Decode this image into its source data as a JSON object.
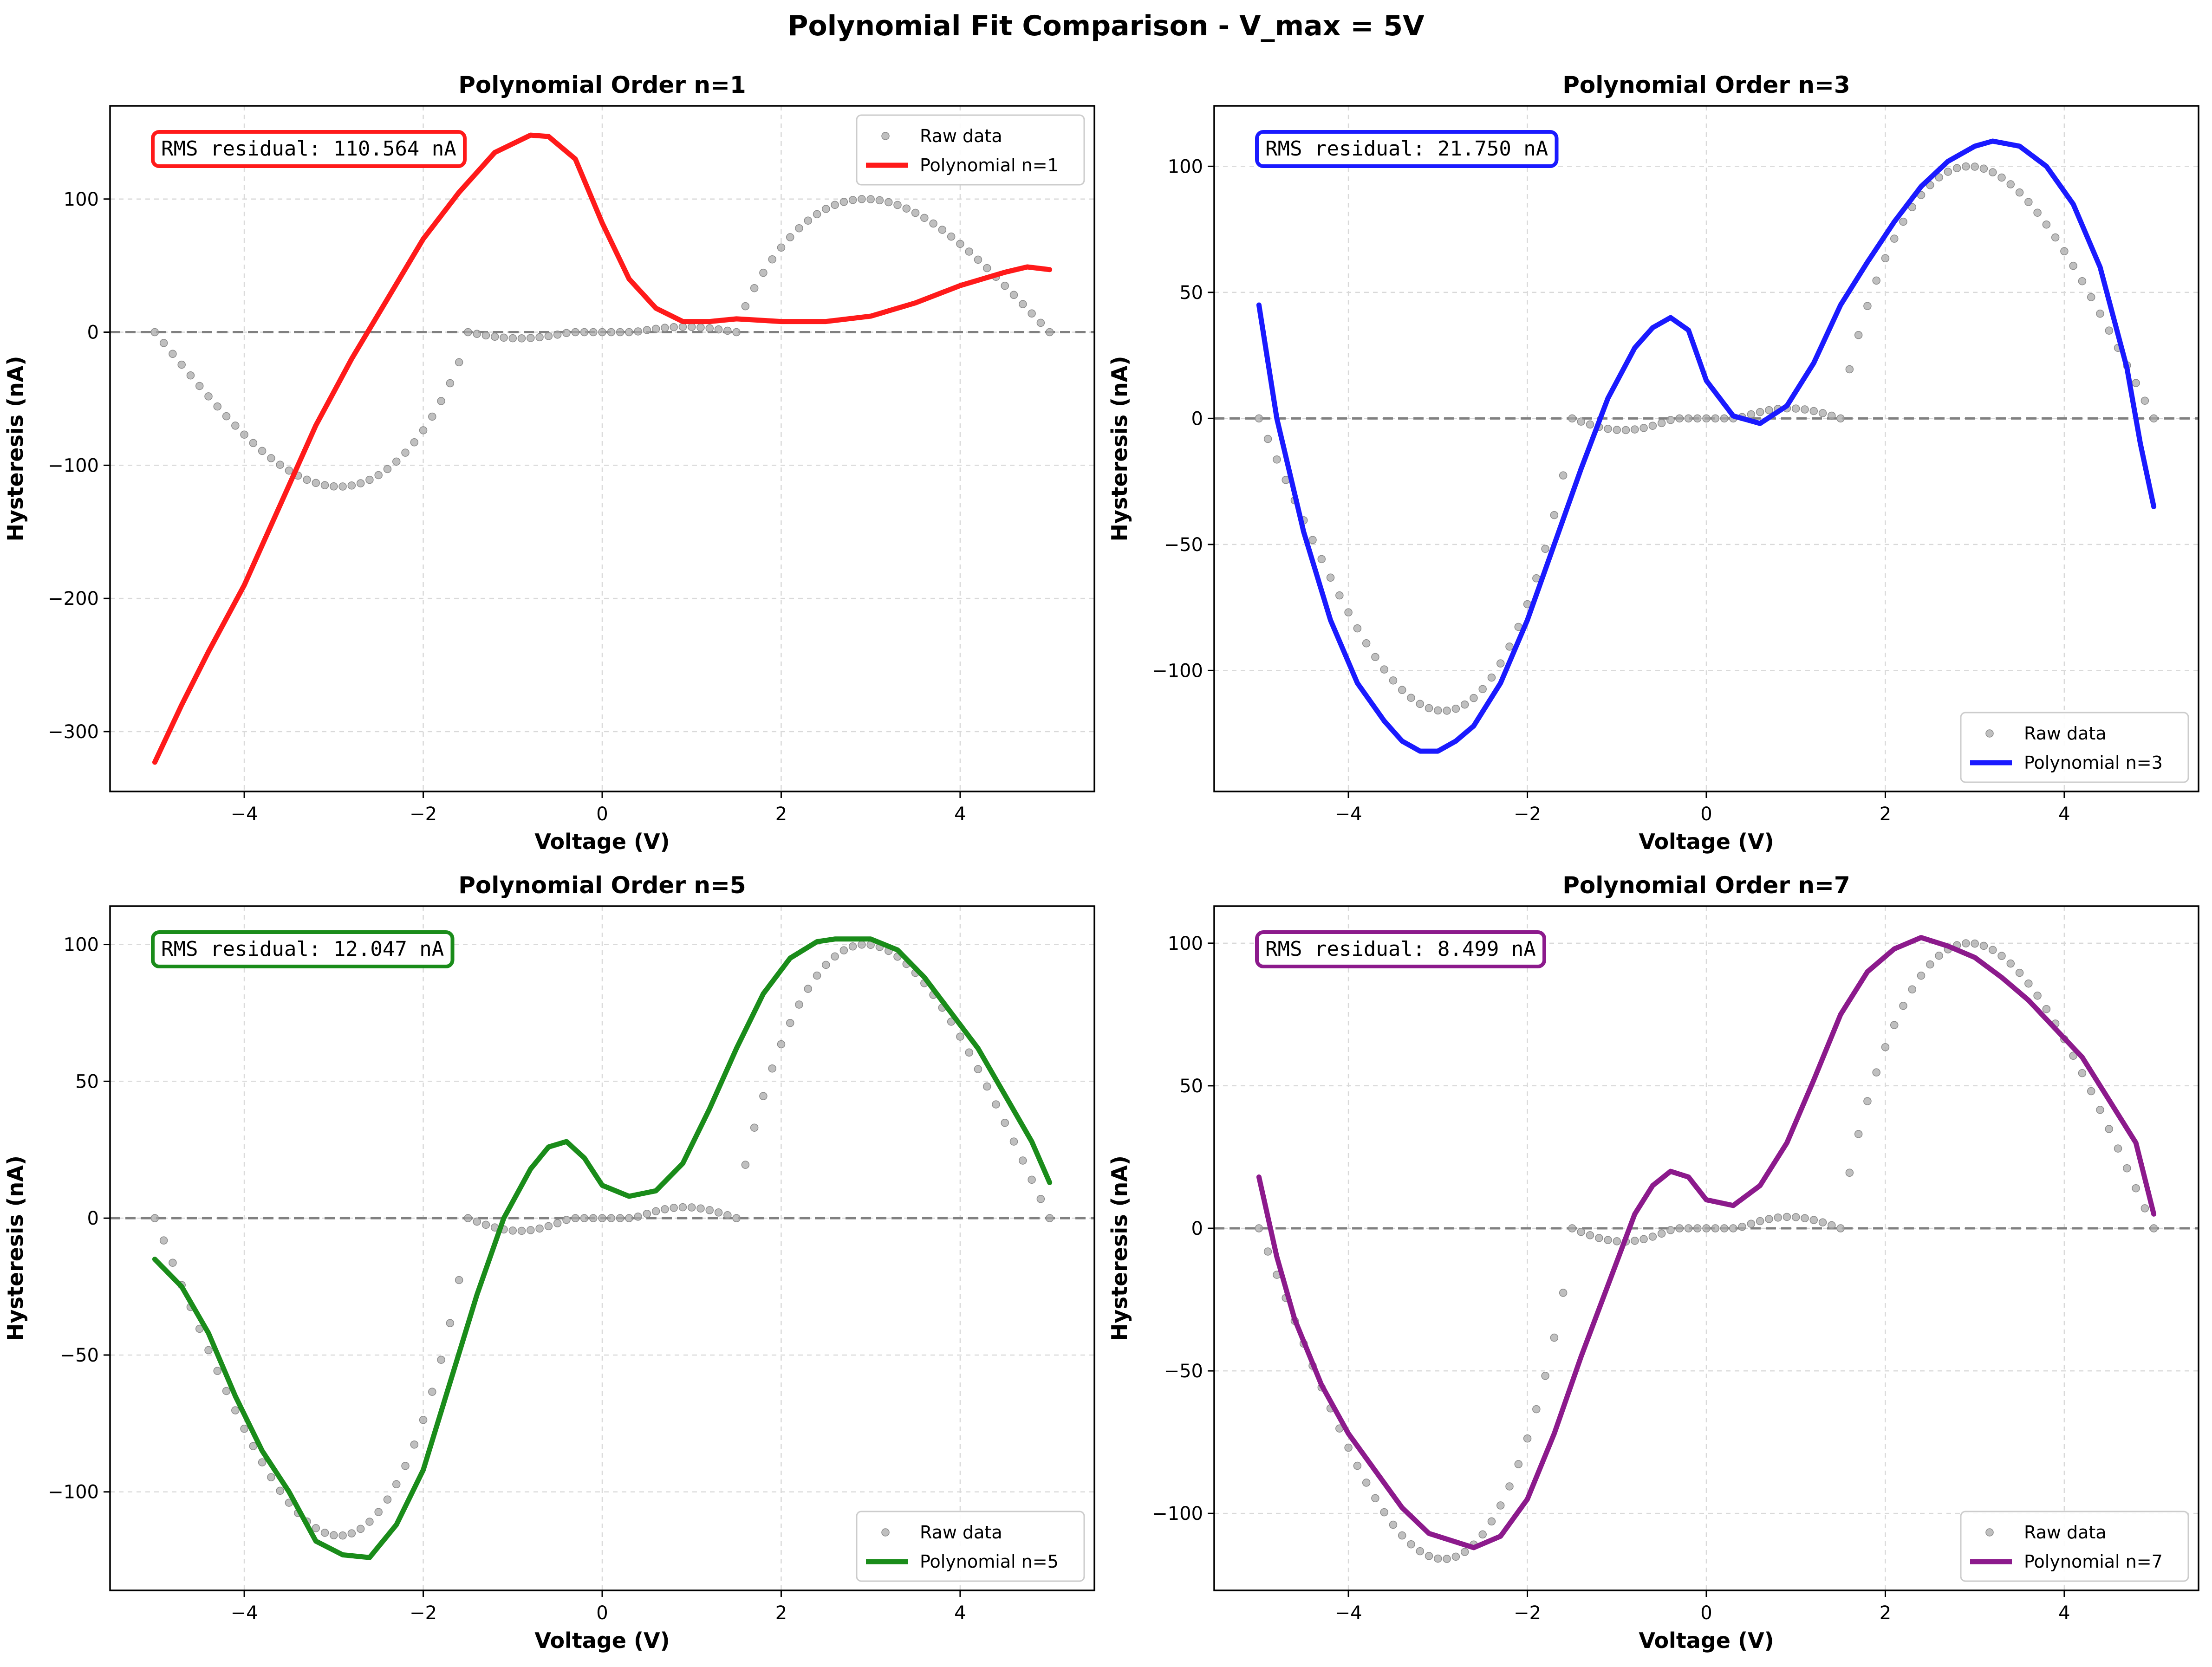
{
  "figure_title": "Polynomial Fit Comparison - V_max = 5V",
  "legend_raw_label": "Raw data",
  "colors": {
    "raw": "#a9a9a9",
    "zero_line": "#808080",
    "grid": "#d9d9d9"
  },
  "chart_data": [
    {
      "type": "line",
      "title": "Polynomial Order n=1",
      "xlabel": "Voltage (V)",
      "ylabel": "Hysteresis (nA)",
      "xlim": [
        -5.5,
        5.5
      ],
      "ylim": [
        -345,
        170
      ],
      "xticks": [
        -4,
        -2,
        0,
        2,
        4
      ],
      "xtick_labels": [
        "−4",
        "−2",
        "0",
        "2",
        "4"
      ],
      "yticks": [
        -300,
        -200,
        -100,
        0,
        100
      ],
      "ytick_labels": [
        "−300",
        "−200",
        "−100",
        "0",
        "100"
      ],
      "rms_text": "RMS residual: 110.564 nA",
      "fit_color": "#ff1a1a",
      "legend_position": "upper right",
      "grid": true,
      "series": [
        {
          "name": "Polynomial n=1",
          "x": [
            -5,
            -4.7,
            -4.4,
            -4,
            -3.6,
            -3.2,
            -2.8,
            -2.4,
            -2,
            -1.6,
            -1.2,
            -0.8,
            -0.6,
            -0.3,
            0,
            0.3,
            0.6,
            0.9,
            1.2,
            1.5,
            2,
            2.5,
            3,
            3.5,
            4,
            4.5,
            4.75,
            5
          ],
          "y": [
            -323,
            -280,
            -240,
            -190,
            -130,
            -70,
            -20,
            25,
            70,
            105,
            135,
            148,
            147,
            130,
            82,
            40,
            18,
            8,
            8,
            10,
            8,
            8,
            12,
            22,
            35,
            45,
            49,
            47
          ]
        }
      ]
    },
    {
      "type": "line",
      "title": "Polynomial Order n=3",
      "xlabel": "Voltage (V)",
      "ylabel": "Hysteresis (nA)",
      "xlim": [
        -5.5,
        5.5
      ],
      "ylim": [
        -148,
        124
      ],
      "xticks": [
        -4,
        -2,
        0,
        2,
        4
      ],
      "xtick_labels": [
        "−4",
        "−2",
        "0",
        "2",
        "4"
      ],
      "yticks": [
        -100,
        -50,
        0,
        50,
        100
      ],
      "ytick_labels": [
        "−100",
        "−50",
        "0",
        "50",
        "100"
      ],
      "rms_text": "RMS residual: 21.750 nA",
      "fit_color": "#1a1aff",
      "legend_position": "lower right",
      "grid": true,
      "series": [
        {
          "name": "Polynomial n=3",
          "x": [
            -5,
            -4.8,
            -4.5,
            -4.2,
            -3.9,
            -3.6,
            -3.4,
            -3.2,
            -3,
            -2.8,
            -2.6,
            -2.3,
            -2,
            -1.7,
            -1.4,
            -1.1,
            -0.8,
            -0.6,
            -0.4,
            -0.2,
            0,
            0.3,
            0.6,
            0.9,
            1.2,
            1.5,
            1.8,
            2.1,
            2.4,
            2.7,
            3,
            3.2,
            3.5,
            3.8,
            4.1,
            4.4,
            4.7,
            4.85,
            5
          ],
          "y": [
            45,
            0,
            -45,
            -80,
            -105,
            -120,
            -128,
            -132,
            -132,
            -128,
            -122,
            -105,
            -80,
            -50,
            -20,
            8,
            28,
            36,
            40,
            35,
            15,
            1,
            -2,
            5,
            22,
            45,
            62,
            78,
            92,
            102,
            108,
            110,
            108,
            100,
            85,
            60,
            20,
            -10,
            -35
          ]
        }
      ]
    },
    {
      "type": "line",
      "title": "Polynomial Order n=5",
      "xlabel": "Voltage (V)",
      "ylabel": "Hysteresis (nA)",
      "xlim": [
        -5.5,
        5.5
      ],
      "ylim": [
        -136,
        114
      ],
      "xticks": [
        -4,
        -2,
        0,
        2,
        4
      ],
      "xtick_labels": [
        "−4",
        "−2",
        "0",
        "2",
        "4"
      ],
      "yticks": [
        -100,
        -50,
        0,
        50,
        100
      ],
      "ytick_labels": [
        "−100",
        "−50",
        "0",
        "50",
        "100"
      ],
      "rms_text": "RMS residual: 12.047 nA",
      "fit_color": "#1a8c1a",
      "legend_position": "lower right",
      "grid": true,
      "series": [
        {
          "name": "Polynomial n=5",
          "x": [
            -5,
            -4.7,
            -4.4,
            -4.1,
            -3.8,
            -3.5,
            -3.2,
            -2.9,
            -2.6,
            -2.3,
            -2,
            -1.7,
            -1.4,
            -1.1,
            -0.8,
            -0.6,
            -0.4,
            -0.2,
            0,
            0.3,
            0.6,
            0.9,
            1.2,
            1.5,
            1.8,
            2.1,
            2.4,
            2.6,
            2.8,
            3,
            3.3,
            3.6,
            3.9,
            4.2,
            4.5,
            4.8,
            5
          ],
          "y": [
            -15,
            -25,
            -42,
            -65,
            -85,
            -100,
            -118,
            -123,
            -124,
            -112,
            -92,
            -60,
            -28,
            0,
            18,
            26,
            28,
            22,
            12,
            8,
            10,
            20,
            40,
            62,
            82,
            95,
            101,
            102,
            102,
            102,
            98,
            88,
            75,
            62,
            45,
            28,
            13
          ]
        }
      ]
    },
    {
      "type": "line",
      "title": "Polynomial Order n=7",
      "xlabel": "Voltage (V)",
      "ylabel": "Hysteresis (nA)",
      "xlim": [
        -5.5,
        5.5
      ],
      "ylim": [
        -127,
        113
      ],
      "xticks": [
        -4,
        -2,
        0,
        2,
        4
      ],
      "xtick_labels": [
        "−4",
        "−2",
        "0",
        "2",
        "4"
      ],
      "yticks": [
        -100,
        -50,
        0,
        50,
        100
      ],
      "ytick_labels": [
        "−100",
        "−50",
        "0",
        "50",
        "100"
      ],
      "rms_text": "RMS residual: 8.499 nA",
      "fit_color": "#8c1a8c",
      "legend_position": "lower right",
      "grid": true,
      "series": [
        {
          "name": "Polynomial n=7",
          "x": [
            -5,
            -4.8,
            -4.6,
            -4.3,
            -4,
            -3.7,
            -3.4,
            -3.1,
            -2.8,
            -2.6,
            -2.3,
            -2,
            -1.7,
            -1.4,
            -1.1,
            -0.8,
            -0.6,
            -0.4,
            -0.2,
            0,
            0.3,
            0.6,
            0.9,
            1.2,
            1.5,
            1.8,
            2.1,
            2.4,
            2.7,
            3,
            3.3,
            3.6,
            3.9,
            4.2,
            4.5,
            4.8,
            5
          ],
          "y": [
            18,
            -10,
            -32,
            -55,
            -72,
            -85,
            -98,
            -107,
            -110,
            -112,
            -108,
            -95,
            -72,
            -45,
            -20,
            5,
            15,
            20,
            18,
            10,
            8,
            15,
            30,
            52,
            75,
            90,
            98,
            102,
            99,
            95,
            88,
            80,
            70,
            60,
            45,
            30,
            5
          ]
        }
      ]
    }
  ]
}
